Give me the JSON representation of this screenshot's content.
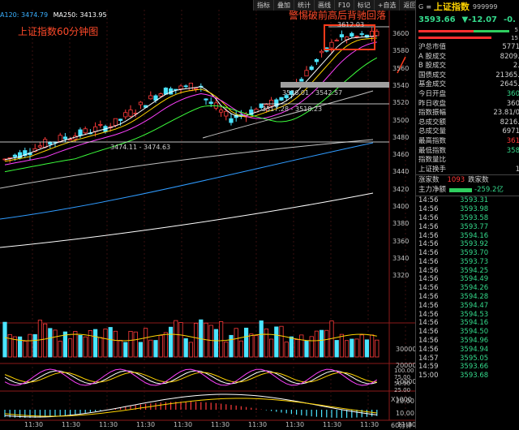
{
  "toolbar": [
    "指标",
    "叠加",
    "统计",
    "画线",
    "F10",
    "标记",
    "+自选",
    "返回"
  ],
  "ma_legend": [
    {
      "text": "A120: 3474.79",
      "color": "#3ab0ff"
    },
    {
      "text": "MA250: 3413.95",
      "color": "#ffffff"
    }
  ],
  "overlay_title": "上证指数60分钟图",
  "warning": "警惕破前高后背驰回落",
  "annotations": {
    "high": "3612.03",
    "range1": "3536.01 - 3542.57",
    "range2": "3517.28 - 3518.23",
    "range3": "3474.11 - 3474.63"
  },
  "y_axis": [
    "3600",
    "3580",
    "3560",
    "3540",
    "3520",
    "3500",
    "3480",
    "3460",
    "3440",
    "3420",
    "3400",
    "3380",
    "3360",
    "3340",
    "3320"
  ],
  "vol_axis": [
    "30000",
    "20000",
    "10000",
    "X1000"
  ],
  "macd_axis1": [
    "100.00",
    "75.00",
    "50.00",
    "25.00"
  ],
  "macd_axis2": [
    "20.00",
    "10.00"
  ],
  "x_axis": [
    "11:30",
    "11:30",
    "11:30",
    "11:30",
    "11:30",
    "11:30",
    "11:30",
    "11:30",
    "11:30",
    "11:30",
    "11:30"
  ],
  "x_axis_suffix": "60分钟",
  "panel": {
    "g": "G",
    "eq": "≡",
    "name": "上证指数",
    "code": "999999",
    "price": "3593.66",
    "change": "▼-12.07",
    "pct": "-0.",
    "bar_values": [
      "5",
      "15"
    ],
    "stats": [
      {
        "label": "沪总市值",
        "value": "5771",
        "cls": ""
      },
      {
        "label": "A 股成交",
        "value": "8209.",
        "cls": ""
      },
      {
        "label": "B 股成交",
        "value": "2.",
        "cls": ""
      },
      {
        "label": "国债成交",
        "value": "21365.",
        "cls": ""
      },
      {
        "label": "基金成交",
        "value": "2645.",
        "cls": ""
      },
      {
        "label": "今日开盘",
        "value": "360",
        "cls": "grn"
      },
      {
        "label": "昨日收盘",
        "value": "360",
        "cls": ""
      },
      {
        "label": "指数振幅",
        "value": "23.81/0",
        "cls": ""
      },
      {
        "label": "总成交额",
        "value": "8216.",
        "cls": ""
      },
      {
        "label": "总成交量",
        "value": "6971",
        "cls": ""
      },
      {
        "label": "最高指数",
        "value": "361",
        "cls": "red"
      },
      {
        "label": "最低指数",
        "value": "358",
        "cls": "grn"
      },
      {
        "label": "指数量比",
        "value": "",
        "cls": ""
      },
      {
        "label": "上证换手",
        "value": "1",
        "cls": ""
      }
    ],
    "up_label": "涨家数",
    "up_value": "1093",
    "down_label": "跌家数",
    "net_label": "主力净额",
    "net_value": "-259.2亿",
    "ticks": [
      {
        "t": "14:56",
        "p": "3593.31"
      },
      {
        "t": "14:56",
        "p": "3593.98"
      },
      {
        "t": "14:56",
        "p": "3593.58"
      },
      {
        "t": "14:56",
        "p": "3593.77"
      },
      {
        "t": "14:56",
        "p": "3594.16"
      },
      {
        "t": "14:56",
        "p": "3593.92"
      },
      {
        "t": "14:56",
        "p": "3593.70"
      },
      {
        "t": "14:56",
        "p": "3593.73"
      },
      {
        "t": "14:56",
        "p": "3594.25"
      },
      {
        "t": "14:56",
        "p": "3594.49"
      },
      {
        "t": "14:56",
        "p": "3594.26"
      },
      {
        "t": "14:56",
        "p": "3594.28"
      },
      {
        "t": "14:56",
        "p": "3594.47"
      },
      {
        "t": "14:56",
        "p": "3594.53"
      },
      {
        "t": "14:56",
        "p": "3594.16"
      },
      {
        "t": "14:56",
        "p": "3594.50"
      },
      {
        "t": "14:56",
        "p": "3594.96"
      },
      {
        "t": "14:56",
        "p": "3594.94"
      },
      {
        "t": "14:57",
        "p": "3595.05"
      },
      {
        "t": "14:59",
        "p": "3593.66"
      },
      {
        "t": "15:00",
        "p": "3593.68"
      }
    ]
  }
}
